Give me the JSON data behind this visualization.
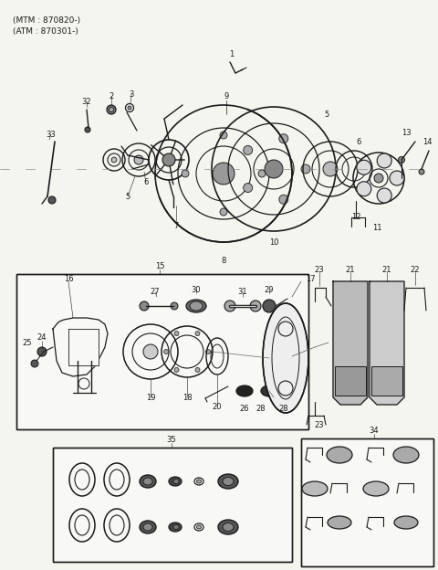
{
  "title_line1": "(MTM : 870820-)",
  "title_line2": "(ATM : 870301-)",
  "bg_color": "#f5f5f0",
  "line_color": "#1a1a1a",
  "text_color": "#1a1a1a",
  "figure_width": 4.8,
  "figure_height": 6.24,
  "dpi": 100
}
